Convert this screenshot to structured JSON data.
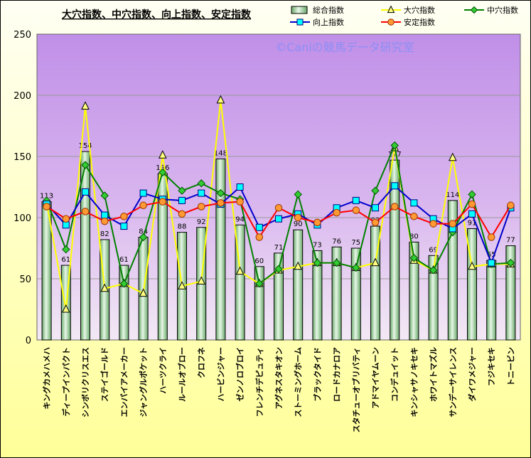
{
  "chart_data": {
    "type": "bar+line",
    "title": "大穴指数、中穴指数、向上指数、安定指数",
    "watermark": "©Caniの競馬データ研究室",
    "ylim": [
      0,
      250
    ],
    "yticks": [
      0,
      50,
      100,
      150,
      200,
      250
    ],
    "categories": [
      "キングカメハメハ",
      "ディープインパクト",
      "シンボリクリスエス",
      "ステイゴールド",
      "エンパイアメーカー",
      "ジャングルポケット",
      "ハーツクライ",
      "ルールオブロー",
      "クロフネ",
      "ハービンジャー",
      "ゼンノロブロイ",
      "フレンチデピュティ",
      "アグネスタキオン",
      "ストーミングホーム",
      "ブラックタイド",
      "ロードカナロア",
      "スタチューオブリバティ",
      "アドマイヤムーン",
      "コンデュイット",
      "キンシャサノキセキ",
      "ホワイトマズル",
      "サンデーサイレンス",
      "ダイワメジャー",
      "フジキセキ",
      "トニービン"
    ],
    "series": [
      {
        "name": "総合指数",
        "kind": "bar",
        "color": "#90c890",
        "values": [
          113,
          61,
          154,
          82,
          61,
          84,
          136,
          88,
          92,
          148,
          94,
          60,
          71,
          90,
          73,
          76,
          75,
          93,
          147,
          80,
          69,
          114,
          91,
          65,
          77
        ]
      },
      {
        "name": "大穴指数",
        "kind": "line",
        "marker": "triangle",
        "color": "#ffff00",
        "markerColor": "#ffff80",
        "values": [
          112,
          25,
          191,
          42,
          46,
          38,
          151,
          44,
          48,
          196,
          56,
          46,
          57,
          60,
          63,
          63,
          59,
          63,
          157,
          65,
          57,
          149,
          60,
          62,
          62
        ]
      },
      {
        "name": "中穴指数",
        "kind": "line",
        "marker": "diamond",
        "color": "#008000",
        "markerColor": "#33cc33",
        "values": [
          114,
          74,
          143,
          118,
          46,
          84,
          137,
          122,
          128,
          120,
          115,
          46,
          58,
          119,
          63,
          63,
          59,
          122,
          159,
          67,
          57,
          88,
          119,
          62,
          63
        ]
      },
      {
        "name": "向上指数",
        "kind": "line",
        "marker": "square",
        "color": "#0000cc",
        "markerColor": "#00ffff",
        "values": [
          111,
          94,
          121,
          102,
          93,
          120,
          115,
          114,
          120,
          111,
          125,
          92,
          99,
          103,
          94,
          108,
          114,
          108,
          126,
          112,
          99,
          91,
          103,
          63,
          108
        ]
      },
      {
        "name": "安定指数",
        "kind": "line",
        "marker": "circle",
        "color": "#ff0000",
        "markerColor": "#ff9933",
        "values": [
          109,
          99,
          105,
          97,
          101,
          110,
          113,
          103,
          109,
          112,
          113,
          84,
          108,
          100,
          96,
          104,
          106,
          96,
          109,
          101,
          95,
          95,
          111,
          84,
          110
        ]
      }
    ],
    "bar_labels": [
      "113",
      "61",
      "154",
      "82",
      "61",
      "84",
      "136",
      "88",
      "92",
      "148",
      "94",
      "60",
      "71",
      "90",
      "73",
      "76",
      "75",
      "93",
      "147",
      "80",
      "69",
      "114",
      "91",
      "65",
      "77"
    ]
  }
}
